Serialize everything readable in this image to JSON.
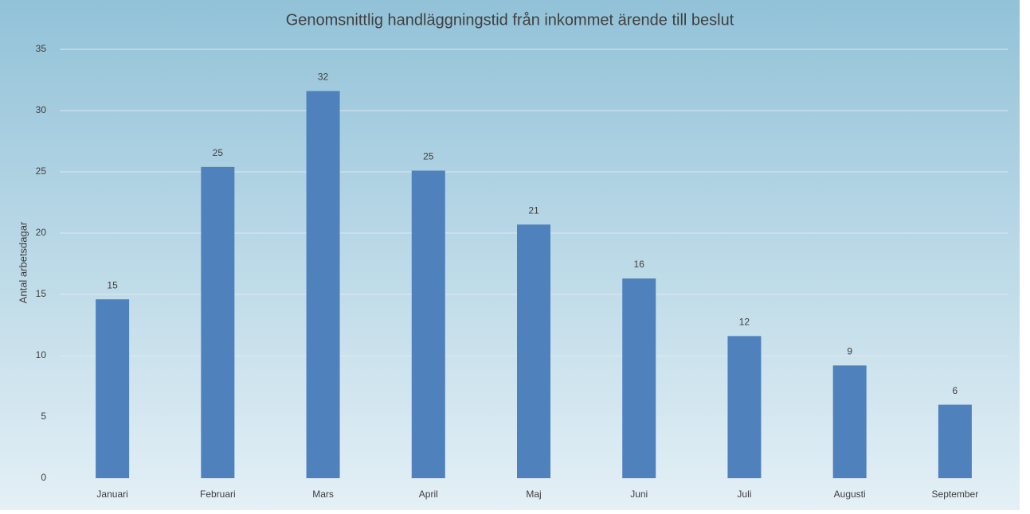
{
  "chart_data": {
    "type": "bar",
    "title": "Genomsnittlig handläggningstid från inkommet ärende till beslut",
    "y_label": "Antal arbetsdagar",
    "categories": [
      "Januari",
      "Februari",
      "Mars",
      "April",
      "Maj",
      "Juni",
      "Juli",
      "Augusti",
      "September"
    ],
    "values": [
      14.6,
      25.4,
      31.6,
      25.1,
      20.7,
      16.3,
      11.6,
      9.2,
      6.0
    ],
    "value_labels": [
      "15",
      "25",
      "32",
      "25",
      "21",
      "16",
      "12",
      "9",
      "6"
    ],
    "color": "#4f81bd",
    "ylim": [
      0,
      35
    ],
    "yticks": [
      0,
      5,
      10,
      15,
      20,
      25,
      30,
      35
    ],
    "grid": true
  }
}
